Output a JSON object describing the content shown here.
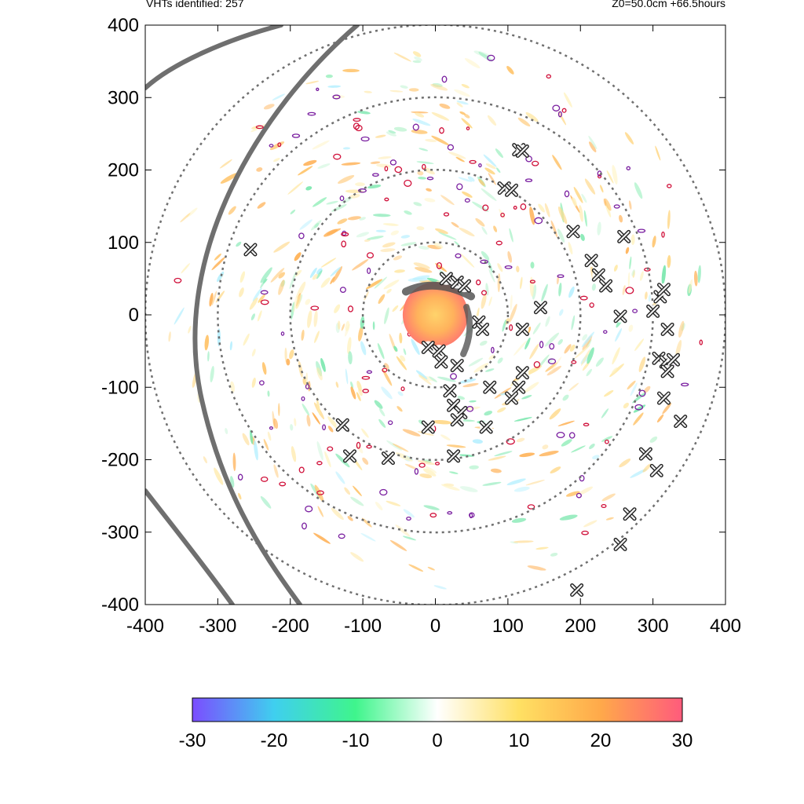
{
  "header": {
    "left_text": "VHTs identified: 257",
    "right_text": "Z0=50.0cm  +66.5hours"
  },
  "chart_data": {
    "type": "heatmap",
    "title": "",
    "xlabel": "",
    "ylabel": "",
    "xlim": [
      -400,
      400
    ],
    "ylim": [
      -400,
      400
    ],
    "x_ticks": [
      "-400",
      "-300",
      "-200",
      "-100",
      "0",
      "100",
      "200",
      "300",
      "400"
    ],
    "y_ticks": [
      "400",
      "300",
      "200",
      "100",
      "0",
      "-100",
      "-200",
      "-300",
      "-400"
    ],
    "grid": false,
    "range_rings_radius": [
      100,
      200,
      300,
      400
    ],
    "colorbar": {
      "min": -30,
      "max": 30,
      "tick_labels": [
        "-30",
        "-20",
        "-10",
        "0",
        "10",
        "20",
        "30"
      ],
      "colors": [
        "#7b4dff",
        "#3fcfef",
        "#3ff58c",
        "#ffffff",
        "#ffe063",
        "#ffa94a",
        "#ff5b7c"
      ]
    },
    "core": {
      "center": [
        0,
        0
      ],
      "radius": 45,
      "color": "#ffab5a"
    },
    "vht_markers": [
      [
        15,
        50
      ],
      [
        30,
        45
      ],
      [
        40,
        40
      ],
      [
        -10,
        -45
      ],
      [
        5,
        -50
      ],
      [
        60,
        -10
      ],
      [
        65,
        -20
      ],
      [
        115,
        228
      ],
      [
        120,
        226
      ],
      [
        95,
        175
      ],
      [
        105,
        172
      ],
      [
        190,
        115
      ],
      [
        260,
        108
      ],
      [
        215,
        75
      ],
      [
        225,
        55
      ],
      [
        235,
        40
      ],
      [
        145,
        10
      ],
      [
        255,
        -2
      ],
      [
        300,
        5
      ],
      [
        310,
        25
      ],
      [
        315,
        35
      ],
      [
        320,
        -20
      ],
      [
        308,
        -60
      ],
      [
        318,
        -65
      ],
      [
        328,
        -62
      ],
      [
        320,
        -78
      ],
      [
        120,
        -20
      ],
      [
        115,
        -100
      ],
      [
        120,
        -80
      ],
      [
        105,
        -115
      ],
      [
        75,
        -100
      ],
      [
        30,
        -70
      ],
      [
        8,
        -65
      ],
      [
        20,
        -105
      ],
      [
        25,
        -125
      ],
      [
        35,
        -135
      ],
      [
        30,
        -145
      ],
      [
        -10,
        -155
      ],
      [
        70,
        -155
      ],
      [
        25,
        -195
      ],
      [
        -128,
        -152
      ],
      [
        -118,
        -195
      ],
      [
        -65,
        -198
      ],
      [
        -255,
        90
      ],
      [
        338,
        -147
      ],
      [
        315,
        -115
      ],
      [
        290,
        -192
      ],
      [
        305,
        -215
      ],
      [
        268,
        -275
      ],
      [
        255,
        -317
      ],
      [
        195,
        -380
      ]
    ],
    "track_arcs": [
      {
        "name": "inner-track"
      },
      {
        "name": "outer-track"
      },
      {
        "name": "lower-left-track"
      }
    ]
  }
}
